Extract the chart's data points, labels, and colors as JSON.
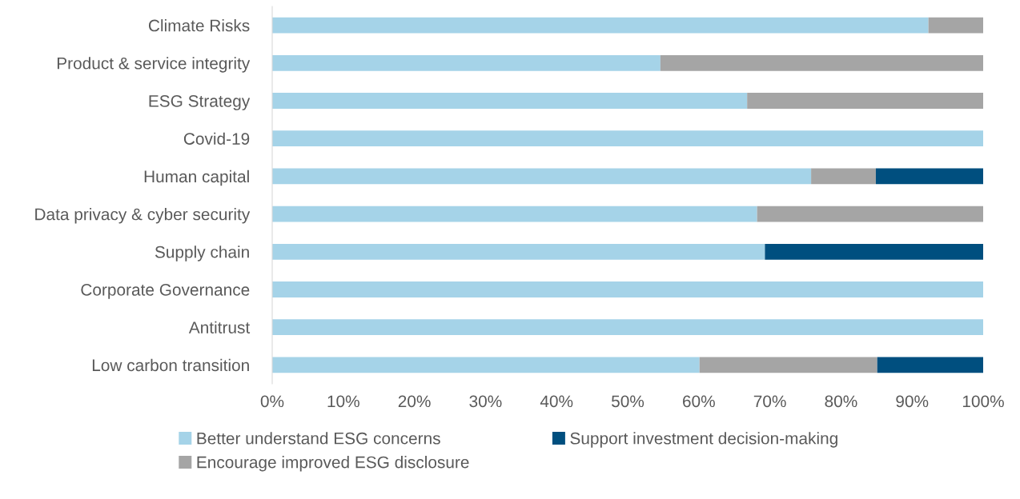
{
  "chart_data": {
    "type": "bar",
    "orientation": "horizontal",
    "stacked": true,
    "categories": [
      "Climate Risks",
      "Product & service integrity",
      "ESG Strategy",
      "Covid-19",
      "Human capital",
      "Data privacy & cyber security",
      "Supply chain",
      "Corporate Governance",
      "Antitrust",
      "Low carbon transition"
    ],
    "series": [
      {
        "name": "Better understand ESG concerns",
        "color": "#a5d3e8",
        "values": [
          92.3,
          54.6,
          66.8,
          100,
          75.8,
          68.2,
          69.3,
          100,
          100,
          60.1
        ]
      },
      {
        "name": "Encourage improved ESG disclosure",
        "color": "#a5a5a5",
        "values": [
          7.7,
          45.4,
          33.2,
          0,
          9.1,
          31.8,
          0,
          0,
          0,
          25.0
        ]
      },
      {
        "name": "Support investment decision-making",
        "color": "#004f7f",
        "values": [
          0,
          0,
          0,
          0,
          15.1,
          0,
          30.7,
          0,
          0,
          14.9
        ]
      }
    ],
    "xlim": [
      0,
      100
    ],
    "xticks": [
      {
        "value": 0,
        "label": "0%"
      },
      {
        "value": 10,
        "label": "10%"
      },
      {
        "value": 20,
        "label": "20%"
      },
      {
        "value": 30,
        "label": "30%"
      },
      {
        "value": 40,
        "label": "40%"
      },
      {
        "value": 50,
        "label": "50%"
      },
      {
        "value": 60,
        "label": "60%"
      },
      {
        "value": 70,
        "label": "70%"
      },
      {
        "value": 80,
        "label": "80%"
      },
      {
        "value": 90,
        "label": "90%"
      },
      {
        "value": 100,
        "label": "100%"
      }
    ],
    "grid": false,
    "legend": "bottom"
  }
}
